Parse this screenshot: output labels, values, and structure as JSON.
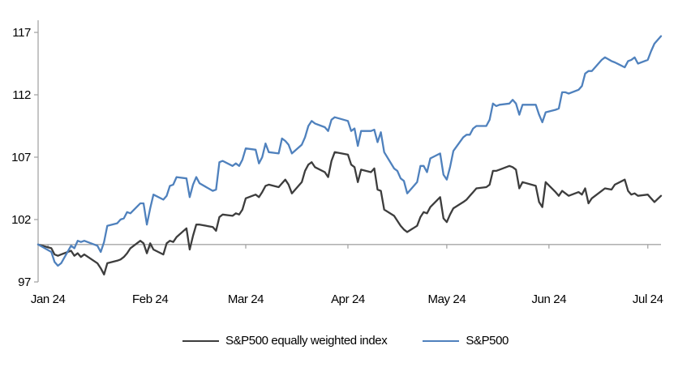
{
  "chart_data": {
    "type": "line",
    "y_axis": {
      "min": 97,
      "max": 117,
      "ticks": [
        97,
        102,
        107,
        112,
        117
      ]
    },
    "x_axis": {
      "tick_labels": [
        "Jan 24",
        "Feb 24",
        "Mar 24",
        "Apr 24",
        "May 24",
        "Jun 24",
        "Jul 24"
      ],
      "tick_dates": [
        "2024-01-01",
        "2024-02-01",
        "2024-03-01",
        "2024-04-01",
        "2024-05-01",
        "2024-06-01",
        "2024-07-01"
      ]
    },
    "baseline": 100,
    "date_range": [
      "2023-12-29",
      "2024-07-05"
    ],
    "grid": false,
    "legend_position": "bottom",
    "axis_color": "#a6a6a6",
    "dates": [
      "2023-12-29",
      "2024-01-02",
      "2024-01-03",
      "2024-01-04",
      "2024-01-05",
      "2024-01-08",
      "2024-01-09",
      "2024-01-10",
      "2024-01-11",
      "2024-01-12",
      "2024-01-16",
      "2024-01-17",
      "2024-01-18",
      "2024-01-19",
      "2024-01-22",
      "2024-01-23",
      "2024-01-24",
      "2024-01-25",
      "2024-01-26",
      "2024-01-29",
      "2024-01-30",
      "2024-01-31",
      "2024-02-01",
      "2024-02-02",
      "2024-02-05",
      "2024-02-06",
      "2024-02-07",
      "2024-02-08",
      "2024-02-09",
      "2024-02-12",
      "2024-02-13",
      "2024-02-14",
      "2024-02-15",
      "2024-02-16",
      "2024-02-20",
      "2024-02-21",
      "2024-02-22",
      "2024-02-23",
      "2024-02-26",
      "2024-02-27",
      "2024-02-28",
      "2024-02-29",
      "2024-03-01",
      "2024-03-04",
      "2024-03-05",
      "2024-03-06",
      "2024-03-07",
      "2024-03-08",
      "2024-03-11",
      "2024-03-12",
      "2024-03-13",
      "2024-03-14",
      "2024-03-15",
      "2024-03-18",
      "2024-03-19",
      "2024-03-20",
      "2024-03-21",
      "2024-03-22",
      "2024-03-25",
      "2024-03-26",
      "2024-03-27",
      "2024-03-28",
      "2024-04-01",
      "2024-04-02",
      "2024-04-03",
      "2024-04-04",
      "2024-04-05",
      "2024-04-08",
      "2024-04-09",
      "2024-04-10",
      "2024-04-11",
      "2024-04-12",
      "2024-04-15",
      "2024-04-16",
      "2024-04-17",
      "2024-04-18",
      "2024-04-19",
      "2024-04-22",
      "2024-04-23",
      "2024-04-24",
      "2024-04-25",
      "2024-04-26",
      "2024-04-29",
      "2024-04-30",
      "2024-05-01",
      "2024-05-02",
      "2024-05-03",
      "2024-05-06",
      "2024-05-07",
      "2024-05-08",
      "2024-05-09",
      "2024-05-10",
      "2024-05-13",
      "2024-05-14",
      "2024-05-15",
      "2024-05-16",
      "2024-05-17",
      "2024-05-20",
      "2024-05-21",
      "2024-05-22",
      "2024-05-23",
      "2024-05-24",
      "2024-05-28",
      "2024-05-29",
      "2024-05-30",
      "2024-05-31",
      "2024-06-03",
      "2024-06-04",
      "2024-06-05",
      "2024-06-06",
      "2024-06-07",
      "2024-06-10",
      "2024-06-11",
      "2024-06-12",
      "2024-06-13",
      "2024-06-14",
      "2024-06-17",
      "2024-06-18",
      "2024-06-20",
      "2024-06-21",
      "2024-06-24",
      "2024-06-25",
      "2024-06-26",
      "2024-06-27",
      "2024-06-28",
      "2024-07-01",
      "2024-07-02",
      "2024-07-03",
      "2024-07-05"
    ],
    "series": [
      {
        "name": "S&P500 equally weighted index",
        "color": "#3d3d3d",
        "values": [
          100.0,
          99.7,
          99.2,
          99.1,
          99.2,
          99.5,
          99.1,
          99.3,
          99.0,
          99.2,
          98.5,
          98.1,
          97.6,
          98.5,
          98.7,
          98.8,
          99.0,
          99.3,
          99.7,
          100.3,
          100.1,
          99.3,
          100.1,
          99.6,
          99.2,
          100.1,
          100.3,
          100.2,
          100.6,
          101.3,
          99.6,
          100.7,
          101.6,
          101.6,
          101.4,
          101.1,
          102.2,
          102.4,
          102.3,
          102.5,
          102.4,
          102.8,
          103.7,
          104.0,
          103.8,
          104.2,
          104.7,
          104.8,
          104.6,
          104.9,
          105.2,
          104.8,
          104.1,
          105.0,
          105.9,
          106.4,
          106.6,
          106.2,
          105.8,
          105.4,
          106.7,
          107.4,
          107.2,
          106.4,
          106.2,
          105.0,
          106.0,
          105.8,
          106.1,
          104.4,
          104.3,
          102.8,
          102.3,
          101.9,
          101.5,
          101.2,
          101.0,
          101.5,
          102.2,
          102.6,
          102.5,
          103.0,
          103.8,
          102.1,
          101.8,
          102.4,
          102.9,
          103.4,
          103.6,
          103.9,
          104.2,
          104.5,
          104.6,
          104.8,
          105.9,
          105.9,
          106.0,
          106.3,
          106.2,
          106.0,
          104.5,
          105.0,
          104.7,
          103.4,
          103.0,
          105.0,
          104.2,
          103.9,
          104.3,
          104.1,
          103.9,
          104.2,
          104.0,
          104.5,
          103.3,
          103.7,
          104.3,
          104.5,
          104.4,
          104.8,
          105.2,
          104.3,
          104.0,
          104.1,
          103.9,
          104.0,
          103.7,
          103.4,
          103.9
        ]
      },
      {
        "name": "S&P500",
        "color": "#4f81bd",
        "values": [
          100.0,
          99.4,
          98.6,
          98.3,
          98.5,
          99.9,
          99.7,
          100.3,
          100.2,
          100.3,
          99.9,
          99.4,
          100.2,
          101.5,
          101.7,
          102.0,
          102.1,
          102.6,
          102.5,
          103.3,
          103.3,
          101.6,
          102.9,
          104.0,
          103.6,
          103.9,
          104.7,
          104.8,
          105.4,
          105.3,
          103.8,
          104.8,
          105.4,
          104.9,
          104.3,
          104.4,
          106.6,
          106.7,
          106.3,
          106.5,
          106.3,
          106.8,
          107.7,
          107.6,
          106.5,
          107.0,
          108.1,
          107.4,
          107.3,
          108.5,
          108.3,
          108.0,
          107.3,
          108.0,
          108.6,
          109.5,
          109.9,
          109.7,
          109.4,
          109.1,
          110.0,
          110.2,
          109.9,
          109.1,
          109.3,
          107.9,
          109.1,
          109.1,
          109.2,
          108.2,
          109.0,
          107.4,
          106.1,
          105.9,
          105.3,
          105.1,
          104.1,
          105.0,
          106.3,
          106.3,
          105.8,
          106.9,
          107.3,
          105.6,
          105.2,
          106.2,
          107.5,
          108.6,
          108.8,
          108.8,
          109.3,
          109.5,
          109.5,
          110.0,
          111.3,
          111.1,
          111.2,
          111.3,
          111.6,
          111.3,
          110.4,
          111.2,
          111.2,
          110.4,
          109.8,
          110.6,
          110.8,
          110.9,
          112.2,
          112.2,
          112.1,
          112.4,
          112.7,
          113.7,
          113.9,
          113.9,
          114.8,
          115.0,
          114.7,
          114.6,
          114.2,
          114.7,
          114.8,
          115.0,
          114.5,
          114.8,
          115.5,
          116.1,
          116.7
        ]
      }
    ]
  }
}
